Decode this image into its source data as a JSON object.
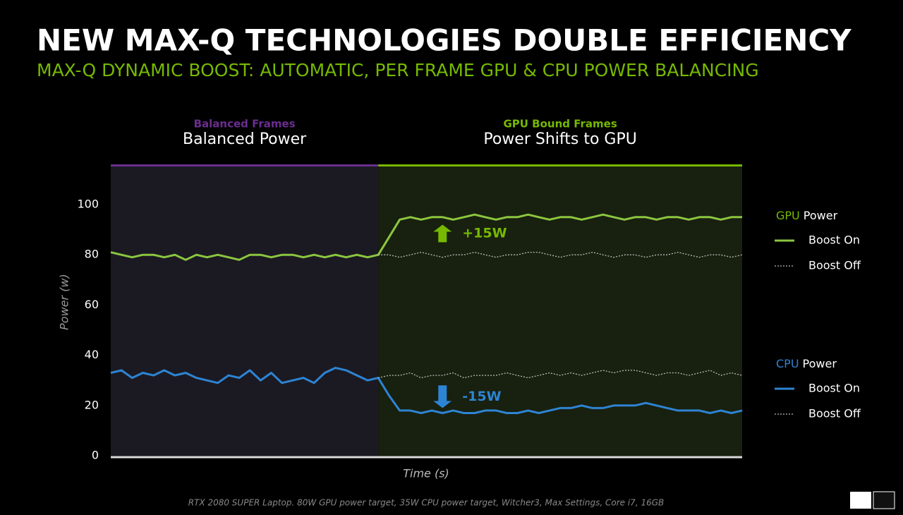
{
  "chart_data": {
    "type": "line",
    "title": "NEW MAX-Q TECHNOLOGIES DOUBLE EFFICIENCY",
    "subtitle": "MAX-Q DYNAMIC BOOST: AUTOMATIC, PER FRAME GPU & CPU POWER BALANCING",
    "x_label": "Time (s)",
    "y_label": "Power (w)",
    "footnote": "RTX 2080 SUPER Laptop. 80W GPU power target, 35W CPU power target, Witcher3, Max Settings, Core i7, 16GB",
    "ylim": [
      0,
      116
    ],
    "yticks": [
      0,
      20,
      40,
      60,
      80,
      100
    ],
    "grid": false,
    "regions": [
      {
        "label": "Balanced Frames",
        "title": "Balanced Power",
        "color": "#6b2d8f",
        "fill": "#1b1a22",
        "from": 0,
        "to": 25
      },
      {
        "label": "GPU Bound Frames",
        "title": "Power Shifts to GPU",
        "color": "#76b900",
        "fill": "#18200f",
        "from": 25,
        "to": 59
      }
    ],
    "legend_groups": [
      {
        "highlight": "GPU",
        "text": "Power",
        "color": "#76b900"
      },
      {
        "highlight": "CPU",
        "text": "Power",
        "color": "#2d84d4"
      }
    ],
    "annotations": [
      {
        "text": "+15W",
        "color": "#76b900"
      },
      {
        "text": "-15W",
        "color": "#2d84d4"
      }
    ],
    "series": [
      {
        "name": "Boost On",
        "group": 0,
        "color": "#8cc63f",
        "dashed": false,
        "values": [
          81,
          80,
          79,
          80,
          80,
          79,
          80,
          78,
          80,
          79,
          80,
          79,
          78,
          80,
          80,
          79,
          80,
          80,
          79,
          80,
          79,
          80,
          79,
          80,
          79,
          80,
          87,
          94,
          95,
          94,
          95,
          95,
          94,
          95,
          96,
          95,
          94,
          95,
          95,
          96,
          95,
          94,
          95,
          95,
          94,
          95,
          96,
          95,
          94,
          95,
          95,
          94,
          95,
          95,
          94,
          95,
          95,
          94,
          95,
          95
        ]
      },
      {
        "name": "Boost Off",
        "group": 0,
        "color": "#bbbbbb",
        "dashed": true,
        "values": [
          null,
          null,
          null,
          null,
          null,
          null,
          null,
          null,
          null,
          null,
          null,
          null,
          null,
          null,
          null,
          null,
          null,
          null,
          null,
          null,
          null,
          null,
          null,
          null,
          null,
          80,
          80,
          79,
          80,
          81,
          80,
          79,
          80,
          80,
          81,
          80,
          79,
          80,
          80,
          81,
          81,
          80,
          79,
          80,
          80,
          81,
          80,
          79,
          80,
          80,
          79,
          80,
          80,
          81,
          80,
          79,
          80,
          80,
          79,
          80
        ]
      },
      {
        "name": "Boost On",
        "group": 1,
        "color": "#2d84d4",
        "dashed": false,
        "values": [
          33,
          34,
          31,
          33,
          32,
          34,
          32,
          33,
          31,
          30,
          29,
          32,
          31,
          34,
          30,
          33,
          29,
          30,
          31,
          29,
          33,
          35,
          34,
          32,
          30,
          31,
          24,
          18,
          18,
          17,
          18,
          17,
          18,
          17,
          17,
          18,
          18,
          17,
          17,
          18,
          17,
          18,
          19,
          19,
          20,
          19,
          19,
          20,
          20,
          20,
          21,
          20,
          19,
          18,
          18,
          18,
          17,
          18,
          17,
          18
        ]
      },
      {
        "name": "Boost Off",
        "group": 1,
        "color": "#bbbbbb",
        "dashed": true,
        "values": [
          null,
          null,
          null,
          null,
          null,
          null,
          null,
          null,
          null,
          null,
          null,
          null,
          null,
          null,
          null,
          null,
          null,
          null,
          null,
          null,
          null,
          null,
          null,
          null,
          null,
          31,
          32,
          32,
          33,
          31,
          32,
          32,
          33,
          31,
          32,
          32,
          32,
          33,
          32,
          31,
          32,
          33,
          32,
          33,
          32,
          33,
          34,
          33,
          34,
          34,
          33,
          32,
          33,
          33,
          32,
          33,
          34,
          32,
          33,
          32
        ]
      }
    ]
  }
}
